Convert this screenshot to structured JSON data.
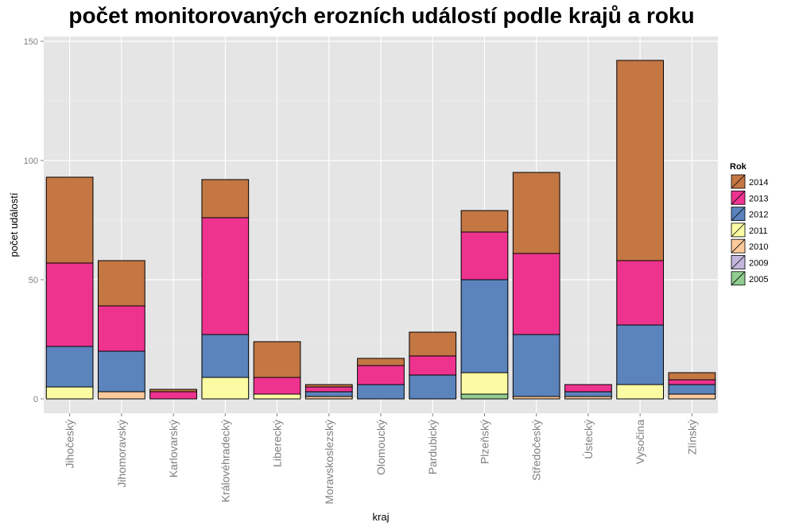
{
  "chart_data": {
    "type": "bar",
    "stacked": true,
    "title": "počet monitorovaných erozních událostí podle krajů a roku",
    "xlabel": "kraj",
    "ylabel": "počet událostí",
    "ylim": [
      -6,
      152
    ],
    "yticks": [
      0,
      50,
      100,
      150
    ],
    "grid": true,
    "legend_position": "right",
    "legend_title": "Rok",
    "categories": [
      "Jihočeský",
      "Jihomoravský",
      "Karlovarský",
      "Královéhradecký",
      "Liberecký",
      "Moravskoslezský",
      "Olomoucký",
      "Pardubický",
      "Plzeňský",
      "Středočeský",
      "Ústecký",
      "Vysočina",
      "Zlínský"
    ],
    "series": [
      {
        "name": "2005",
        "color": "#90cc8f",
        "values": [
          0,
          0,
          0,
          0,
          0,
          0,
          0,
          0,
          2,
          0,
          0,
          0,
          0
        ]
      },
      {
        "name": "2009",
        "color": "#c3b5dc",
        "values": [
          0,
          0,
          0,
          0,
          0,
          0,
          0,
          0,
          0,
          0,
          0,
          0,
          0
        ]
      },
      {
        "name": "2010",
        "color": "#fbc99b",
        "values": [
          0,
          3,
          0,
          0,
          0,
          1,
          0,
          0,
          0,
          1,
          1,
          0,
          2
        ]
      },
      {
        "name": "2011",
        "color": "#fbfba3",
        "values": [
          5,
          0,
          0,
          9,
          2,
          0,
          0,
          0,
          9,
          0,
          0,
          6,
          0
        ]
      },
      {
        "name": "2012",
        "color": "#5b83bc",
        "values": [
          17,
          17,
          0,
          18,
          0,
          2,
          6,
          10,
          39,
          26,
          2,
          25,
          4
        ]
      },
      {
        "name": "2013",
        "color": "#ee338f",
        "values": [
          35,
          19,
          3,
          49,
          7,
          2,
          8,
          8,
          20,
          34,
          3,
          27,
          2
        ]
      },
      {
        "name": "2014",
        "color": "#c47643",
        "values": [
          36,
          19,
          1,
          16,
          15,
          1,
          3,
          10,
          9,
          34,
          0,
          84,
          3
        ]
      }
    ],
    "legend_order": [
      "2014",
      "2013",
      "2012",
      "2011",
      "2010",
      "2009",
      "2005"
    ]
  }
}
